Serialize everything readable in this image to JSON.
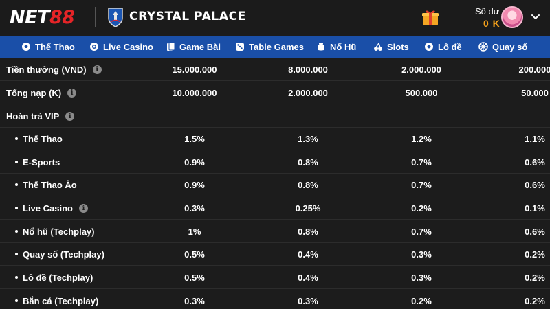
{
  "header": {
    "logo_net": "NET",
    "logo_num": "88",
    "club_name": "CRYSTAL PALACE",
    "balance_label": "Số dư",
    "balance_value": "0 K"
  },
  "colors": {
    "nav_background": "#1a4fa8",
    "brand_red": "#e52427",
    "balance_orange": "#f7a21b",
    "page_background": "#1c1c1c"
  },
  "nav": {
    "items": [
      {
        "label": "Thể Thao",
        "icon": "soccer-ball-icon"
      },
      {
        "label": "Live Casino",
        "icon": "chip-icon"
      },
      {
        "label": "Game Bài",
        "icon": "cards-icon"
      },
      {
        "label": "Table Games",
        "icon": "dice-icon"
      },
      {
        "label": "Nổ Hũ",
        "icon": "jar-icon"
      },
      {
        "label": "Slots",
        "icon": "cherry-icon"
      },
      {
        "label": "Lô đề",
        "icon": "lottery-ball-icon"
      },
      {
        "label": "Quay số",
        "icon": "wheel-icon"
      }
    ]
  },
  "table": {
    "rows": [
      {
        "label": "Tiền thưởng (VND)",
        "info": true,
        "sub": false,
        "values": [
          "15.000.000",
          "8.000.000",
          "2.000.000",
          "200.000"
        ]
      },
      {
        "label": "Tổng nạp (K)",
        "info": true,
        "sub": false,
        "values": [
          "10.000.000",
          "2.000.000",
          "500.000",
          "50.000"
        ]
      },
      {
        "label": "Hoàn trả VIP",
        "info": true,
        "sub": false,
        "values": [
          "",
          "",
          "",
          ""
        ]
      },
      {
        "label": "Thể Thao",
        "info": false,
        "sub": true,
        "values": [
          "1.5%",
          "1.3%",
          "1.2%",
          "1.1%"
        ]
      },
      {
        "label": "E-Sports",
        "info": false,
        "sub": true,
        "values": [
          "0.9%",
          "0.8%",
          "0.7%",
          "0.6%"
        ]
      },
      {
        "label": "Thể Thao Ảo",
        "info": false,
        "sub": true,
        "values": [
          "0.9%",
          "0.8%",
          "0.7%",
          "0.6%"
        ]
      },
      {
        "label": "Live Casino",
        "info": true,
        "sub": true,
        "values": [
          "0.3%",
          "0.25%",
          "0.2%",
          "0.1%"
        ]
      },
      {
        "label": "Nổ hũ (Techplay)",
        "info": false,
        "sub": true,
        "values": [
          "1%",
          "0.8%",
          "0.7%",
          "0.6%"
        ]
      },
      {
        "label": "Quay số (Techplay)",
        "info": false,
        "sub": true,
        "values": [
          "0.5%",
          "0.4%",
          "0.3%",
          "0.2%"
        ]
      },
      {
        "label": "Lô đề (Techplay)",
        "info": false,
        "sub": true,
        "values": [
          "0.5%",
          "0.4%",
          "0.3%",
          "0.2%"
        ]
      },
      {
        "label": "Bắn cá (Techplay)",
        "info": false,
        "sub": true,
        "values": [
          "0.3%",
          "0.3%",
          "0.2%",
          "0.2%"
        ]
      }
    ]
  }
}
